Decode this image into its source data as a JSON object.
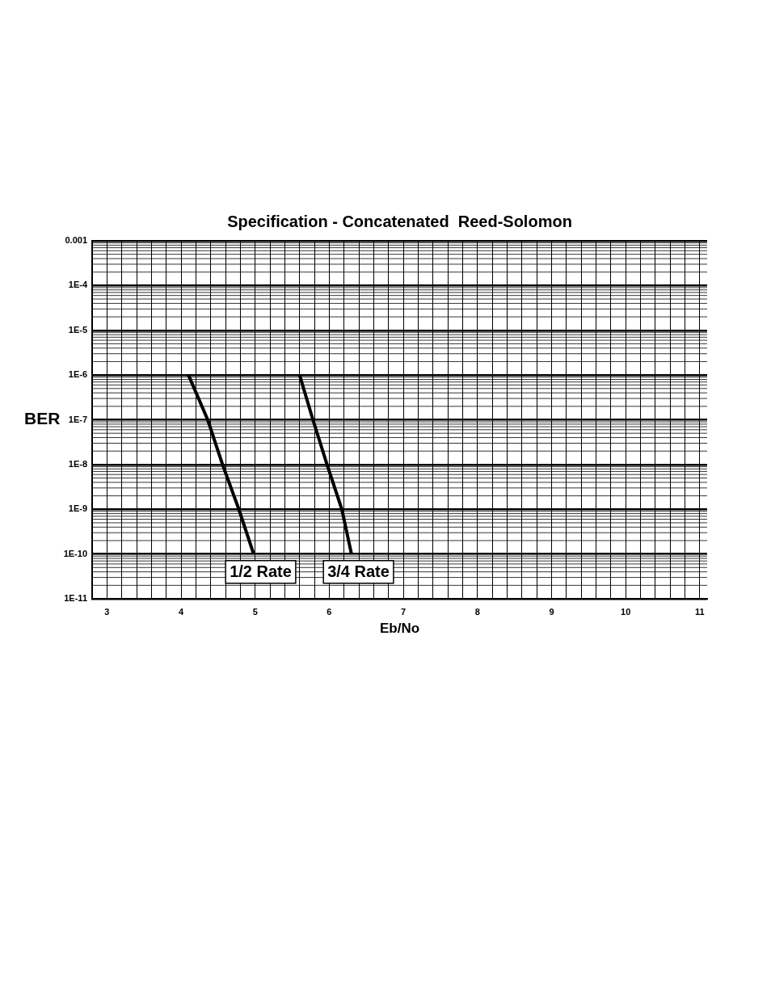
{
  "chart_data": {
    "type": "line",
    "title": "Specification - Concatenated  Reed-Solomon",
    "xlabel": "Eb/No",
    "ylabel": "BER",
    "log": "y",
    "grid": true,
    "legend": "bottom",
    "marker": "none",
    "line_style": "solid",
    "xlim": [
      2.8,
      11.1
    ],
    "xticks": [
      {
        "value": 2.8,
        "label": null
      },
      3,
      {
        "value": 3.2,
        "label": null
      },
      {
        "value": 3.4,
        "label": null
      },
      {
        "value": 3.6,
        "label": null
      },
      {
        "value": 3.8,
        "label": null
      },
      4,
      {
        "value": 4.2,
        "label": null
      },
      {
        "value": 4.4,
        "label": null
      },
      {
        "value": 4.6,
        "label": null
      },
      {
        "value": 4.8,
        "label": null
      },
      5,
      {
        "value": 5.2,
        "label": null
      },
      {
        "value": 5.4,
        "label": null
      },
      {
        "value": 5.6,
        "label": null
      },
      {
        "value": 5.8,
        "label": null
      },
      6,
      {
        "value": 6.2,
        "label": null
      },
      {
        "value": 6.4,
        "label": null
      },
      {
        "value": 6.6,
        "label": null
      },
      {
        "value": 6.8,
        "label": null
      },
      7,
      {
        "value": 7.2,
        "label": null
      },
      {
        "value": 7.4,
        "label": null
      },
      {
        "value": 7.6,
        "label": null
      },
      {
        "value": 7.8,
        "label": null
      },
      8,
      {
        "value": 8.2,
        "label": null
      },
      {
        "value": 8.4,
        "label": null
      },
      {
        "value": 8.6,
        "label": null
      },
      {
        "value": 8.8,
        "label": null
      },
      9,
      {
        "value": 9.2,
        "label": null
      },
      {
        "value": 9.4,
        "label": null
      },
      {
        "value": 9.6,
        "label": null
      },
      {
        "value": 9.8,
        "label": null
      },
      10,
      {
        "value": 10.2,
        "label": null
      },
      {
        "value": 10.4,
        "label": null
      },
      {
        "value": 10.6,
        "label": null
      },
      {
        "value": 10.8,
        "label": null
      },
      11
    ],
    "ylim": [
      1e-11,
      0.001
    ],
    "yticks": [
      {
        "value": 1e-11,
        "label": "1E-11"
      },
      {
        "value": 1e-10,
        "label": "1E-10"
      },
      {
        "value": 1e-09,
        "label": "1E-9"
      },
      {
        "value": 1e-08,
        "label": "1E-8"
      },
      {
        "value": 1e-07,
        "label": "1E-7"
      },
      {
        "value": 1e-06,
        "label": "1E-6"
      },
      {
        "value": 1e-05,
        "label": "1E-5"
      },
      {
        "value": 0.0001,
        "label": "1E-4"
      },
      0.001
    ],
    "series": [
      {
        "name": "1/2 Rate",
        "color": "#000000",
        "x": [
          4.1,
          4.36,
          4.56,
          4.78,
          4.98
        ],
        "values": [
          1e-06,
          1e-07,
          1e-08,
          1e-09,
          1e-10
        ]
      },
      {
        "name": "3/4 Rate",
        "color": "#000000",
        "x": [
          5.6,
          5.78,
          5.97,
          6.17,
          6.3
        ],
        "values": [
          1e-06,
          1e-07,
          1e-08,
          1e-09,
          1e-10
        ]
      }
    ]
  }
}
